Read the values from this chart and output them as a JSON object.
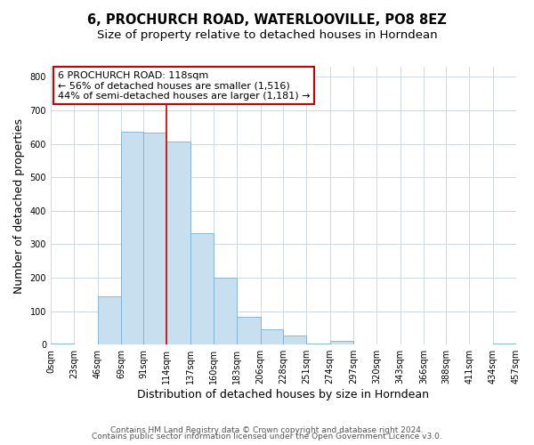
{
  "title": "6, PROCHURCH ROAD, WATERLOOVILLE, PO8 8EZ",
  "subtitle": "Size of property relative to detached houses in Horndean",
  "xlabel": "Distribution of detached houses by size in Horndean",
  "ylabel": "Number of detached properties",
  "bin_edges": [
    0,
    23,
    46,
    69,
    91,
    114,
    137,
    160,
    183,
    206,
    228,
    251,
    274,
    297,
    320,
    343,
    366,
    388,
    411,
    434,
    457
  ],
  "bar_heights": [
    3,
    0,
    143,
    635,
    632,
    607,
    332,
    200,
    84,
    46,
    27,
    3,
    12,
    0,
    0,
    0,
    0,
    0,
    0,
    3
  ],
  "tick_labels": [
    "0sqm",
    "23sqm",
    "46sqm",
    "69sqm",
    "91sqm",
    "114sqm",
    "137sqm",
    "160sqm",
    "183sqm",
    "206sqm",
    "228sqm",
    "251sqm",
    "274sqm",
    "297sqm",
    "320sqm",
    "343sqm",
    "366sqm",
    "388sqm",
    "411sqm",
    "434sqm",
    "457sqm"
  ],
  "bar_color": "#c8dff0",
  "bar_edge_color": "#7ab0d4",
  "property_line_x": 114,
  "property_line_color": "#cc0000",
  "annotation_line1": "6 PROCHURCH ROAD: 118sqm",
  "annotation_line2": "← 56% of detached houses are smaller (1,516)",
  "annotation_line3": "44% of semi-detached houses are larger (1,181) →",
  "ylim": [
    0,
    830
  ],
  "yticks": [
    0,
    100,
    200,
    300,
    400,
    500,
    600,
    700,
    800
  ],
  "footer_line1": "Contains HM Land Registry data © Crown copyright and database right 2024.",
  "footer_line2": "Contains public sector information licensed under the Open Government Licence v3.0.",
  "bg_color": "#ffffff",
  "plot_bg_color": "#ffffff",
  "grid_color": "#d0d8e0",
  "title_fontsize": 10.5,
  "subtitle_fontsize": 9.5,
  "axis_label_fontsize": 9,
  "tick_fontsize": 7,
  "annotation_fontsize": 8,
  "footer_fontsize": 6.5
}
